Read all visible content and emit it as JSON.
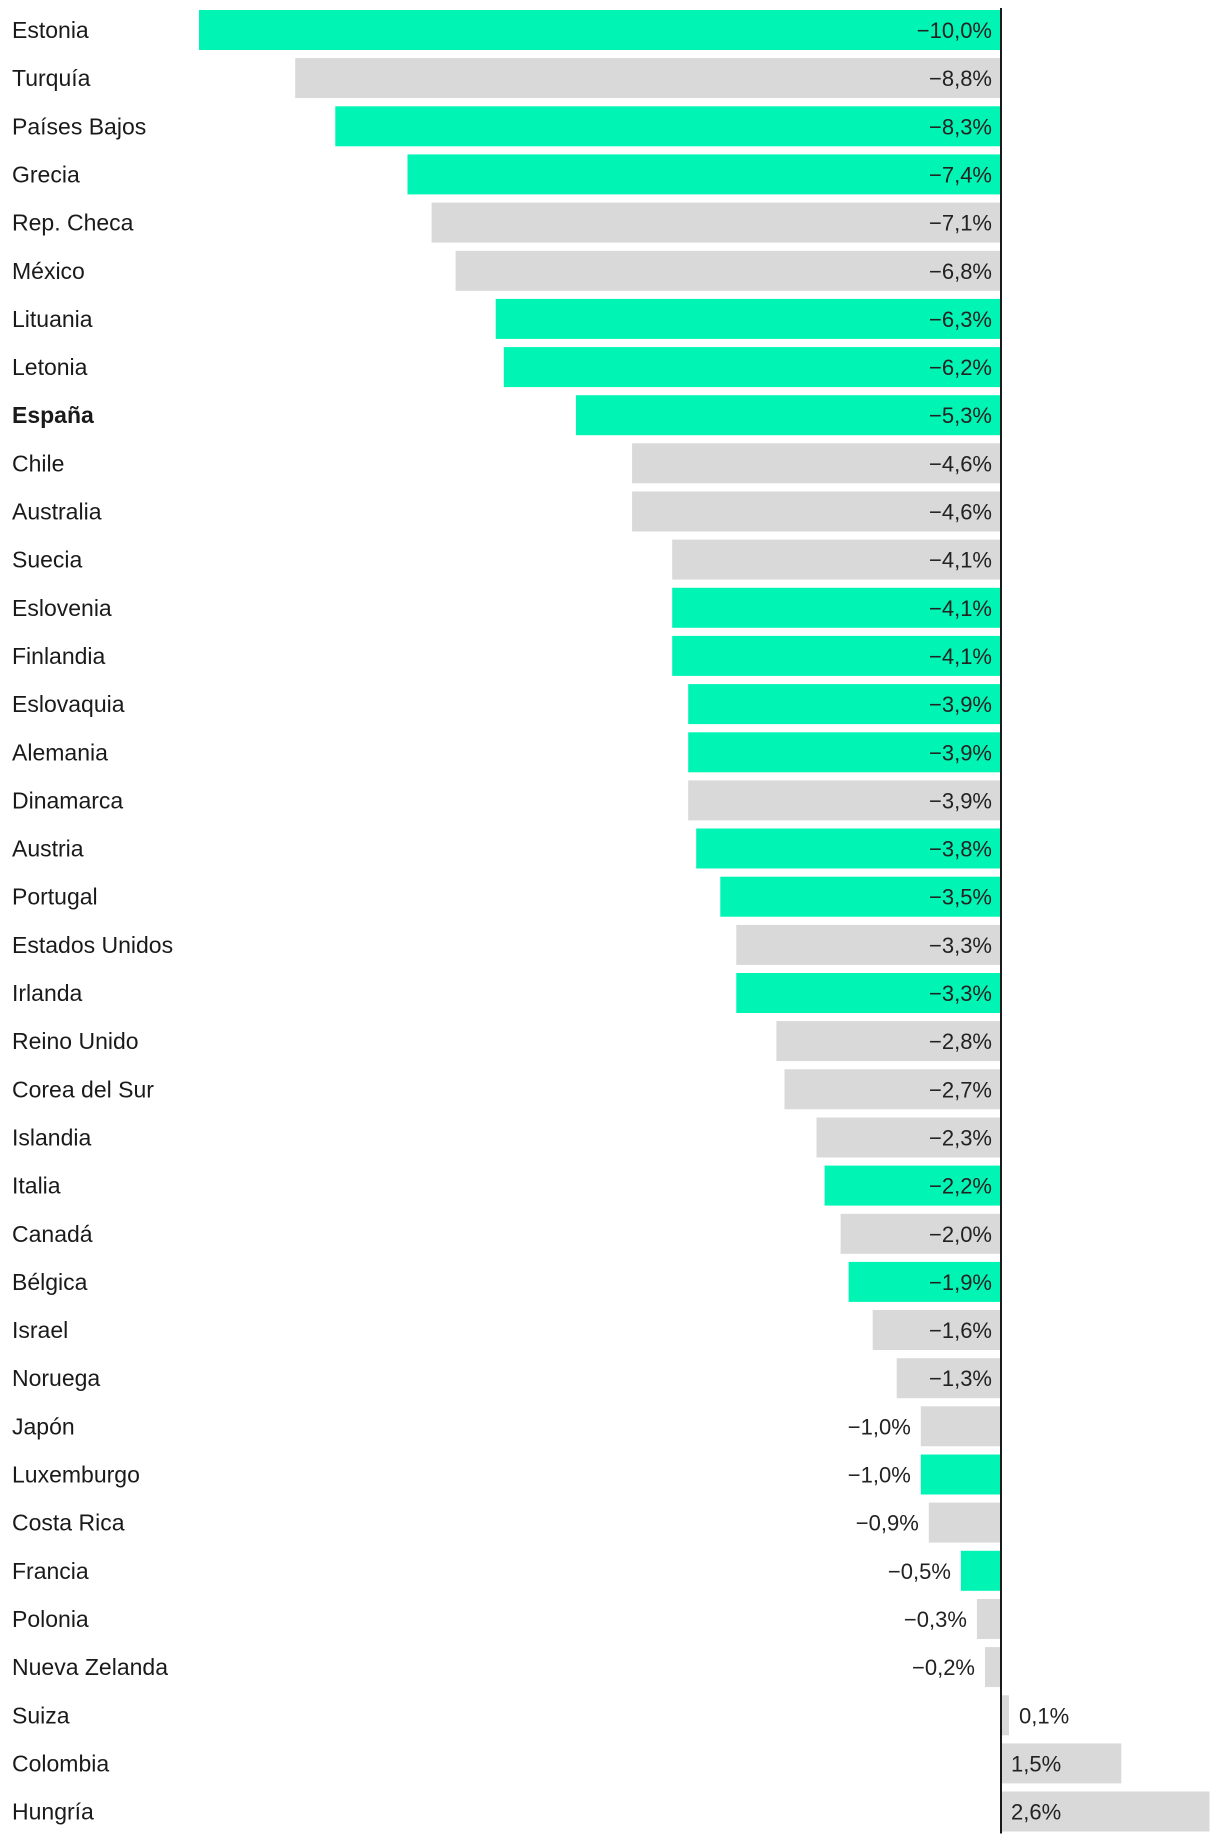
{
  "chart_data": {
    "type": "bar",
    "orientation": "horizontal",
    "title": "",
    "xlabel": "",
    "ylabel": "",
    "xlim": [
      -10.0,
      2.6
    ],
    "highlight_category": "España",
    "colors": {
      "highlight": "#00F5B4",
      "default": "#D9D9D9",
      "axis": "#1a1a1a"
    },
    "categories": [
      "Estonia",
      "Turquía",
      "Países Bajos",
      "Grecia",
      "Rep. Checa",
      "México",
      "Lituania",
      "Letonia",
      "España",
      "Chile",
      "Australia",
      "Suecia",
      "Eslovenia",
      "Finlandia",
      "Eslovaquia",
      "Alemania",
      "Dinamarca",
      "Austria",
      "Portugal",
      "Estados Unidos",
      "Irlanda",
      "Reino Unido",
      "Corea del Sur",
      "Islandia",
      "Italia",
      "Canadá",
      "Bélgica",
      "Israel",
      "Noruega",
      "Japón",
      "Luxemburgo",
      "Costa Rica",
      "Francia",
      "Polonia",
      "Nueva Zelanda",
      "Suiza",
      "Colombia",
      "Hungría"
    ],
    "values": [
      -10.0,
      -8.8,
      -8.3,
      -7.4,
      -7.1,
      -6.8,
      -6.3,
      -6.2,
      -5.3,
      -4.6,
      -4.6,
      -4.1,
      -4.1,
      -4.1,
      -3.9,
      -3.9,
      -3.9,
      -3.8,
      -3.5,
      -3.3,
      -3.3,
      -2.8,
      -2.7,
      -2.3,
      -2.2,
      -2.0,
      -1.9,
      -1.6,
      -1.3,
      -1.0,
      -1.0,
      -0.9,
      -0.5,
      -0.3,
      -0.2,
      0.1,
      1.5,
      2.6
    ],
    "value_labels": [
      "−10,0%",
      "−8,8%",
      "−8,3%",
      "−7,4%",
      "−7,1%",
      "−6,8%",
      "−6,3%",
      "−6,2%",
      "−5,3%",
      "−4,6%",
      "−4,6%",
      "−4,1%",
      "−4,1%",
      "−4,1%",
      "−3,9%",
      "−3,9%",
      "−3,9%",
      "−3,8%",
      "−3,5%",
      "−3,3%",
      "−3,3%",
      "−2,8%",
      "−2,7%",
      "−2,3%",
      "−2,2%",
      "−2,0%",
      "−1,9%",
      "−1,6%",
      "−1,3%",
      "−1,0%",
      "−1,0%",
      "−0,9%",
      "−0,5%",
      "−0,3%",
      "−0,2%",
      "0,1%",
      "1,5%",
      "2,6%"
    ],
    "highlighted": [
      true,
      false,
      true,
      true,
      false,
      false,
      true,
      true,
      true,
      false,
      false,
      false,
      true,
      true,
      true,
      true,
      false,
      true,
      true,
      false,
      true,
      false,
      false,
      false,
      true,
      false,
      true,
      false,
      false,
      false,
      true,
      false,
      true,
      false,
      false,
      false,
      false,
      false
    ]
  }
}
